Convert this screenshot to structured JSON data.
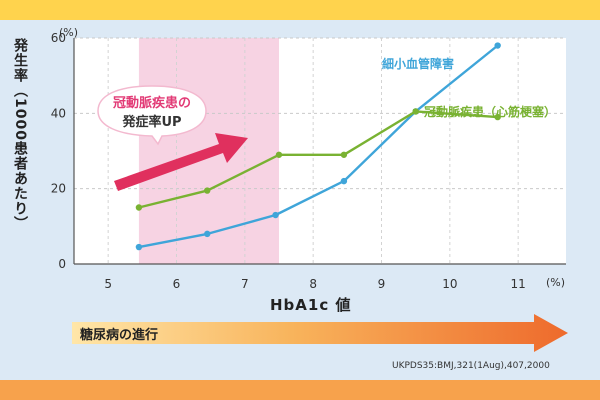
{
  "colors": {
    "background": "#dce9f5",
    "band_top": "#ffd34d",
    "band_bottom": "#f7a24c",
    "highlight": "#f7d3e3",
    "microvascular": "#3fa5d9",
    "coronary": "#79b232",
    "arrow": "#e0305e",
    "callout_accent": "#e23b76"
  },
  "callout": {
    "line1": "冠動脈疾患の",
    "line2": "発症率UP"
  },
  "progress_bar": {
    "label": "糖尿病の進行"
  },
  "source": "UKPDS35:BMJ,321(1Aug),407,2000",
  "chart_data": {
    "type": "line",
    "ylabel": "発生率（1000患者あたり）",
    "xlabel": "HbA1c 値",
    "y_unit": "(%)",
    "x_unit": "(%)",
    "xlim": [
      4.5,
      11.7
    ],
    "ylim": [
      0,
      60
    ],
    "x_ticks": [
      5,
      6,
      7,
      8,
      9,
      10,
      11
    ],
    "y_ticks": [
      0,
      20,
      40,
      60
    ],
    "grid": true,
    "highlight_range": [
      5.45,
      7.5
    ],
    "series": [
      {
        "name": "細小血管障害",
        "color": "#3fa5d9",
        "points": [
          [
            5.45,
            4.5
          ],
          [
            6.45,
            8
          ],
          [
            7.45,
            13
          ],
          [
            8.45,
            22
          ],
          [
            9.5,
            40.5
          ],
          [
            10.7,
            58
          ]
        ]
      },
      {
        "name": "冠動脈疾患（心筋梗塞）",
        "color": "#79b232",
        "points": [
          [
            5.45,
            15
          ],
          [
            6.45,
            19.5
          ],
          [
            7.5,
            29
          ],
          [
            8.45,
            29
          ],
          [
            9.5,
            40.5
          ],
          [
            10.7,
            39
          ]
        ]
      }
    ]
  }
}
